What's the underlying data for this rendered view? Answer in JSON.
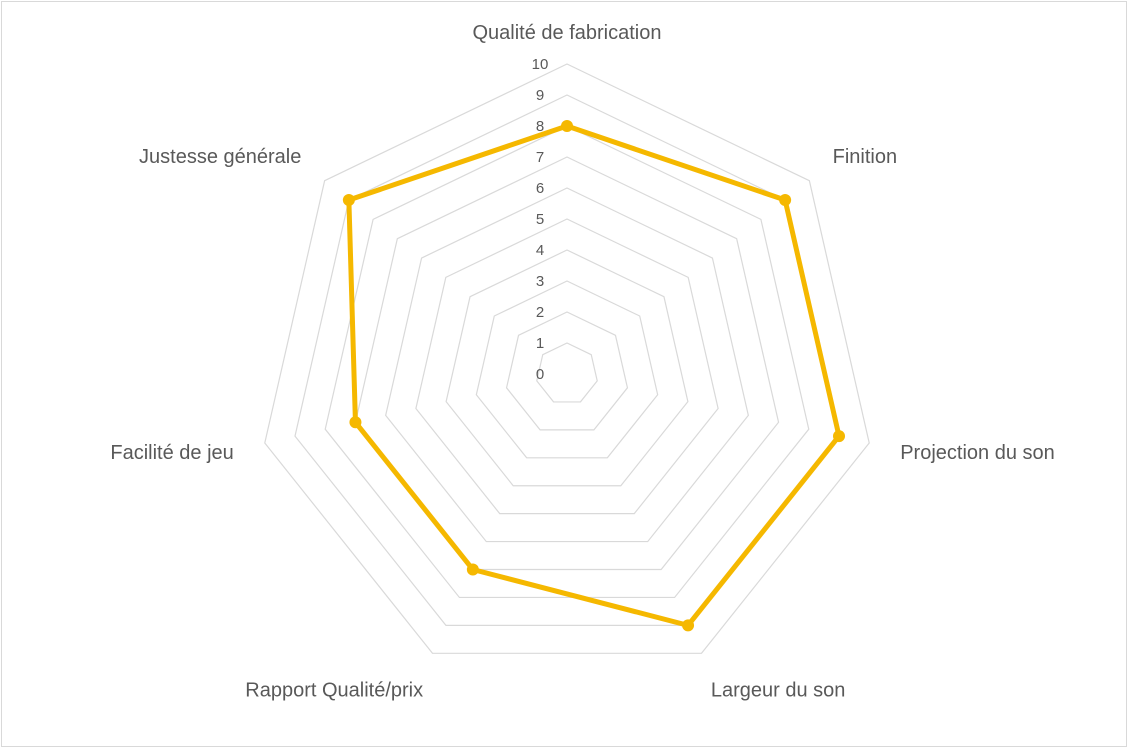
{
  "chart_data": {
    "type": "radar",
    "categories": [
      "Qualité de fabrication",
      "Finition",
      "Projection du son",
      "Largeur du son",
      "Rapport Qualité/prix",
      "Facilité de jeu",
      "Justesse générale"
    ],
    "series": [
      {
        "values": [
          8,
          9,
          9,
          9,
          7,
          7,
          9
        ],
        "color": "#f5b800"
      }
    ],
    "rlim": [
      0,
      10
    ],
    "ticks": [
      "0",
      "1",
      "2",
      "3",
      "4",
      "5",
      "6",
      "7",
      "8",
      "9",
      "10"
    ],
    "grid": true,
    "grid_color": "#d9d9d9",
    "legend": "none"
  }
}
